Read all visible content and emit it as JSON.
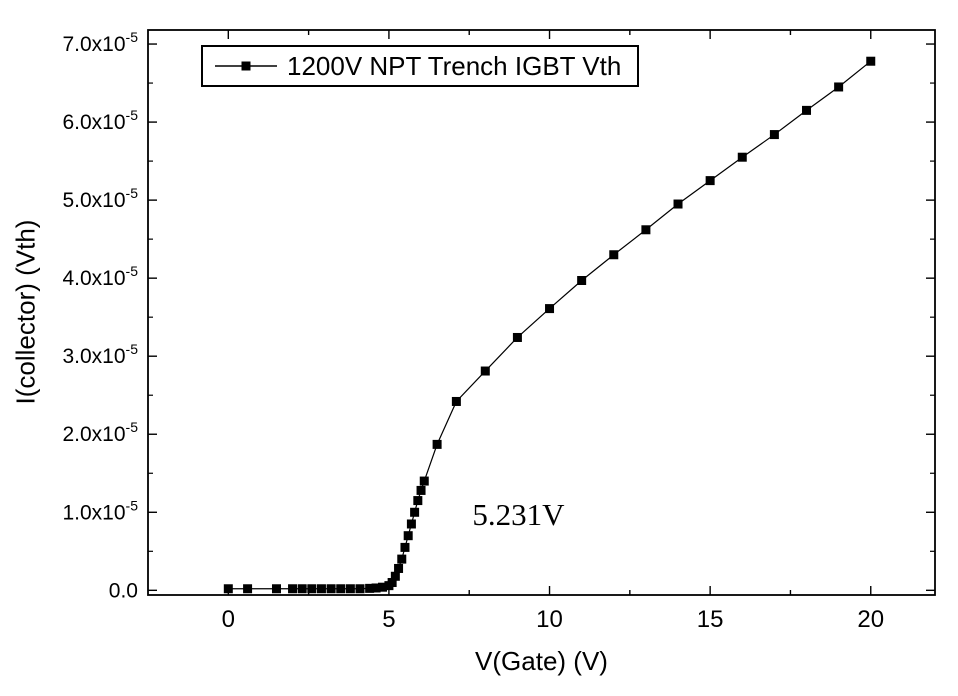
{
  "chart_data": {
    "type": "line",
    "title": "",
    "xlabel": "V(Gate) (V)",
    "ylabel": "I(collector) (Vth)",
    "xlim": [
      -2.5,
      22
    ],
    "ylim": [
      -6e-07,
      7.18e-05
    ],
    "grid": false,
    "legend_position": "top-left-inside",
    "legend": {
      "label": "1200V NPT Trench IGBT Vth",
      "marker": "filled-square-on-line"
    },
    "annotation": {
      "text": "5.231V",
      "x": 7.6,
      "y": 9e-06
    },
    "marker": "filled-square",
    "colors": {
      "line": "#000000",
      "marker": "#000000",
      "frame": "#000000",
      "background": "#ffffff"
    },
    "xticks": [
      {
        "value": 0,
        "label": "0"
      },
      {
        "value": 5,
        "label": "5"
      },
      {
        "value": 10,
        "label": "10"
      },
      {
        "value": 15,
        "label": "15"
      },
      {
        "value": 20,
        "label": "20"
      }
    ],
    "yticks": [
      {
        "value": 0,
        "label": "0.0"
      },
      {
        "value": 1e-05,
        "label": "1.0x10",
        "exp": "-5"
      },
      {
        "value": 2e-05,
        "label": "2.0x10",
        "exp": "-5"
      },
      {
        "value": 3e-05,
        "label": "3.0x10",
        "exp": "-5"
      },
      {
        "value": 4e-05,
        "label": "4.0x10",
        "exp": "-5"
      },
      {
        "value": 5e-05,
        "label": "5.0x10",
        "exp": "-5"
      },
      {
        "value": 6e-05,
        "label": "6.0x10",
        "exp": "-5"
      },
      {
        "value": 7e-05,
        "label": "7.0x10",
        "exp": "-5"
      }
    ],
    "series": [
      {
        "name": "1200V NPT Trench IGBT Vth",
        "x": [
          0.0,
          0.6,
          1.5,
          2.0,
          2.3,
          2.6,
          2.9,
          3.2,
          3.5,
          3.8,
          4.1,
          4.4,
          4.6,
          4.8,
          5.0,
          5.1,
          5.2,
          5.3,
          5.4,
          5.5,
          5.6,
          5.7,
          5.8,
          5.9,
          6.0,
          6.1,
          6.5,
          7.1,
          8.0,
          9.0,
          10.0,
          11.0,
          12.0,
          13.0,
          14.0,
          15.0,
          16.0,
          17.0,
          18.0,
          19.0,
          20.0
        ],
        "y": [
          2e-07,
          2e-07,
          2e-07,
          2e-07,
          2e-07,
          2e-07,
          2e-07,
          2e-07,
          2e-07,
          2e-07,
          2e-07,
          2.5e-07,
          3e-07,
          4e-07,
          6e-07,
          1e-06,
          1.8e-06,
          2.8e-06,
          4e-06,
          5.5e-06,
          7e-06,
          8.5e-06,
          1e-05,
          1.15e-05,
          1.28e-05,
          1.4e-05,
          1.87e-05,
          2.42e-05,
          2.81e-05,
          3.24e-05,
          3.61e-05,
          3.97e-05,
          4.3e-05,
          4.62e-05,
          4.95e-05,
          5.25e-05,
          5.55e-05,
          5.84e-05,
          6.15e-05,
          6.45e-05,
          6.78e-05
        ]
      }
    ]
  }
}
